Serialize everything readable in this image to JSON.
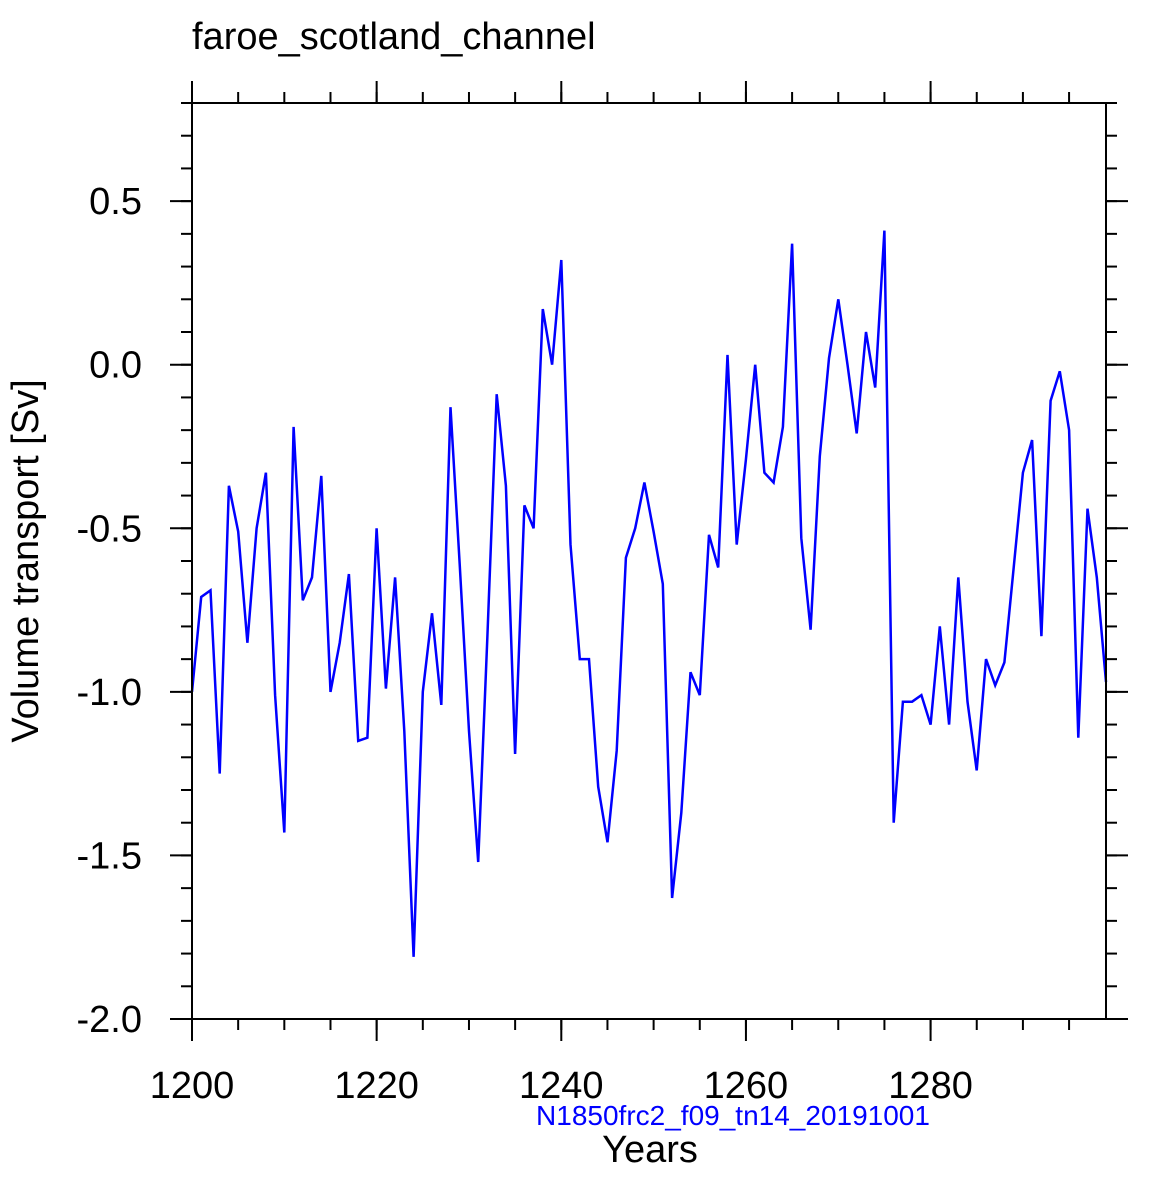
{
  "chart_data": {
    "type": "line",
    "title": "faroe_scotland_channel",
    "xlabel": "Years",
    "ylabel": "Volume transport [Sv]",
    "subtitle": "N1850frc2_f09_tn14_20191001",
    "xlim": [
      1200,
      1299
    ],
    "ylim": [
      -2.0,
      0.8
    ],
    "xticks": [
      1200,
      1220,
      1240,
      1260,
      1280
    ],
    "xtick_labels": [
      "1200",
      "1220",
      "1240",
      "1260",
      "1280"
    ],
    "yticks": [
      0.5,
      0.0,
      -0.5,
      -1.0,
      -1.5,
      -2.0
    ],
    "ytick_labels": [
      "0.5",
      "0.0",
      "-0.5",
      "-1.0",
      "-1.5",
      "-2.0"
    ],
    "x_minor_step": 5,
    "y_minor_step": 0.1,
    "series": [
      {
        "name": "faroe_scotland_channel",
        "color": "#0000ff",
        "x": [
          1200,
          1201,
          1202,
          1203,
          1204,
          1205,
          1206,
          1207,
          1208,
          1209,
          1210,
          1211,
          1212,
          1213,
          1214,
          1215,
          1216,
          1217,
          1218,
          1219,
          1220,
          1221,
          1222,
          1223,
          1224,
          1225,
          1226,
          1227,
          1228,
          1229,
          1230,
          1231,
          1232,
          1233,
          1234,
          1235,
          1236,
          1237,
          1238,
          1239,
          1240,
          1241,
          1242,
          1243,
          1244,
          1245,
          1246,
          1247,
          1248,
          1249,
          1250,
          1251,
          1252,
          1253,
          1254,
          1255,
          1256,
          1257,
          1258,
          1259,
          1260,
          1261,
          1262,
          1263,
          1264,
          1265,
          1266,
          1267,
          1268,
          1269,
          1270,
          1271,
          1272,
          1273,
          1274,
          1275,
          1276,
          1277,
          1278,
          1279,
          1280,
          1281,
          1282,
          1283,
          1284,
          1285,
          1286,
          1287,
          1288,
          1289,
          1290,
          1291,
          1292,
          1293,
          1294,
          1295,
          1296,
          1297,
          1298,
          1299
        ],
        "values": [
          -1.0,
          -0.71,
          -0.69,
          -1.25,
          -0.37,
          -0.51,
          -0.85,
          -0.5,
          -0.33,
          -1.01,
          -1.43,
          -0.19,
          -0.72,
          -0.65,
          -0.34,
          -1.0,
          -0.85,
          -0.64,
          -1.15,
          -1.14,
          -0.5,
          -0.99,
          -0.65,
          -1.12,
          -1.81,
          -1.0,
          -0.76,
          -1.04,
          -0.13,
          -0.61,
          -1.12,
          -1.52,
          -0.83,
          -0.09,
          -0.37,
          -1.19,
          -0.43,
          -0.5,
          0.17,
          0.0,
          0.32,
          -0.55,
          -0.9,
          -0.9,
          -1.29,
          -1.46,
          -1.18,
          -0.59,
          -0.5,
          -0.36,
          -0.51,
          -0.67,
          -1.63,
          -1.37,
          -0.94,
          -1.01,
          -0.52,
          -0.62,
          0.03,
          -0.55,
          -0.29,
          0.0,
          -0.33,
          -0.36,
          -0.19,
          0.37,
          -0.53,
          -0.81,
          -0.28,
          0.02,
          0.2,
          0.0,
          -0.21,
          0.1,
          -0.07,
          0.41,
          -1.4,
          -1.03,
          -1.03,
          -1.01,
          -1.1,
          -0.8,
          -1.1,
          -0.65,
          -1.03,
          -1.24,
          -0.9,
          -0.98,
          -0.91,
          -0.62,
          -0.33,
          -0.23,
          -0.83,
          -0.11,
          -0.02,
          -0.2,
          -1.14,
          -0.44,
          -0.65,
          -0.97
        ]
      }
    ]
  }
}
